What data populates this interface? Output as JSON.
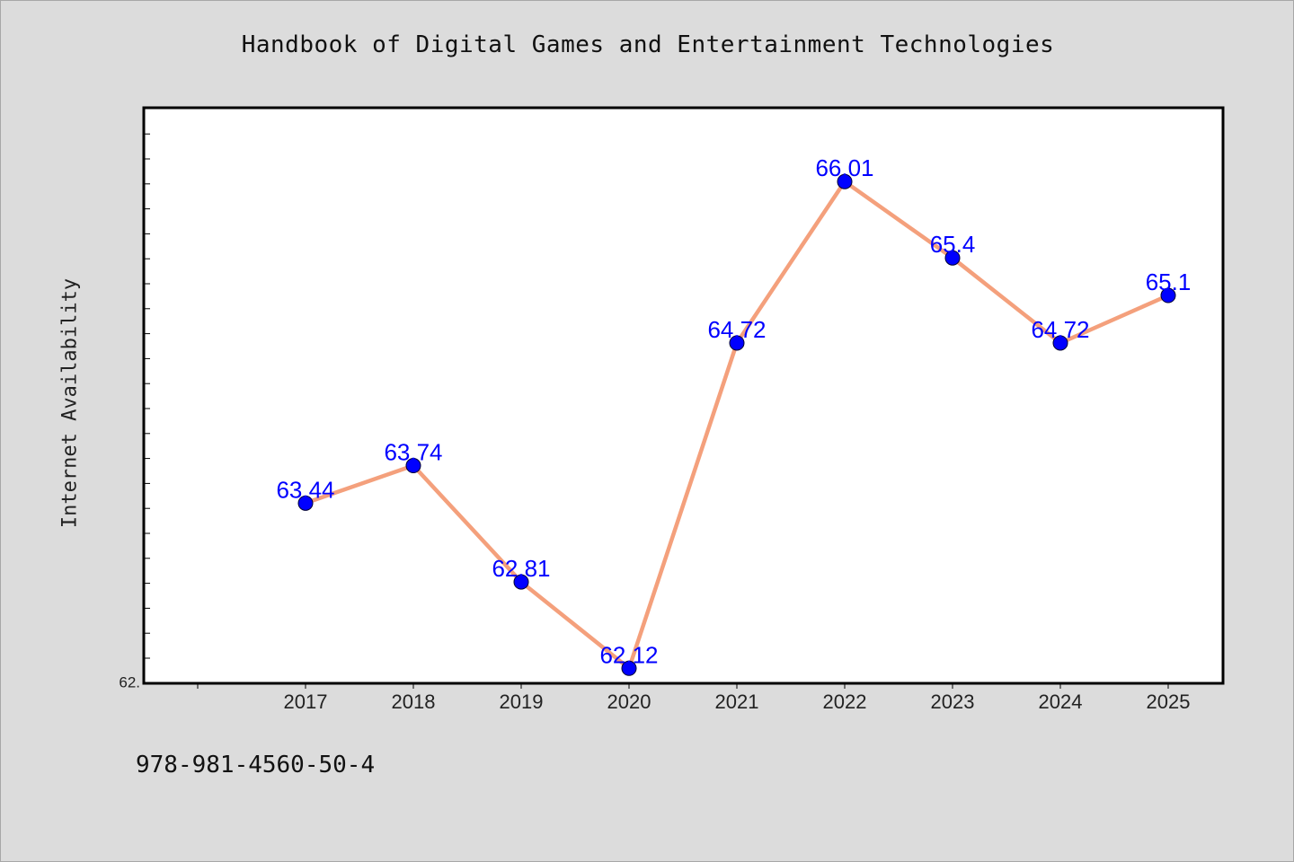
{
  "title": "Handbook of Digital Games and Entertainment Technologies",
  "footer_text": "978-981-4560-50-4",
  "colors": {
    "background": "#dcdcdc",
    "plot_background": "#ffffff",
    "line": "#f4a07c",
    "marker": "#0000ff",
    "data_label": "#0000ff"
  },
  "chart_data": {
    "type": "line",
    "title": "Handbook of Digital Games and Entertainment Technologies",
    "xlabel": "",
    "ylabel": "Internet Availability",
    "categories": [
      "2017",
      "2018",
      "2019",
      "2020",
      "2021",
      "2022",
      "2023",
      "2024",
      "2025"
    ],
    "series": [
      {
        "values": [
          63.44,
          63.74,
          62.81,
          62.12,
          64.72,
          66.01,
          65.4,
          64.72,
          65.1
        ],
        "data_labels": [
          "63.44",
          "63.74",
          "62.81",
          "62.12",
          "64.72",
          "66.01",
          "65.4",
          "64.72",
          "65.1"
        ]
      }
    ],
    "ylim": [
      62.0,
      66.6
    ],
    "y_tick_labels": [
      "62."
    ],
    "grid": false,
    "legend": "none"
  }
}
